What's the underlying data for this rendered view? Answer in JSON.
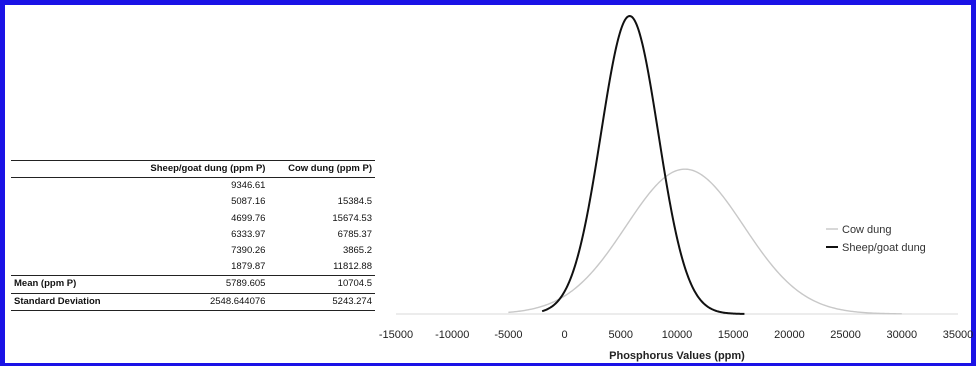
{
  "table": {
    "col_headers": [
      "",
      "Sheep/goat dung (ppm P)",
      "Cow dung (ppm P)"
    ],
    "rows": [
      [
        "",
        "9346.61",
        ""
      ],
      [
        "",
        "5087.16",
        "15384.5"
      ],
      [
        "",
        "4699.76",
        "15674.53"
      ],
      [
        "",
        "6333.97",
        "6785.37"
      ],
      [
        "",
        "7390.26",
        "3865.2"
      ],
      [
        "",
        "1879.87",
        "11812.88"
      ]
    ],
    "mean": [
      "Mean (ppm P)",
      "5789.605",
      "10704.5"
    ],
    "sd": [
      "Standard Deviation",
      "2548.644076",
      "5243.274"
    ]
  },
  "colors": {
    "frame": "#1a12e6",
    "cow": "#c8c8c8",
    "sheep": "#111111"
  },
  "chart_data": {
    "type": "line",
    "xlabel": "Phosphorus Values (ppm)",
    "ylabel": "",
    "xlim": [
      -15000,
      35000
    ],
    "x_ticks": [
      "-15000",
      "-10000",
      "-5000",
      "0",
      "5000",
      "10000",
      "15000",
      "20000",
      "25000",
      "30000",
      "35000"
    ],
    "legend_position": "right",
    "series": [
      {
        "name": "Cow dung",
        "mean": 10704.5,
        "sd": 5243.274,
        "x_range": [
          -5000,
          30000
        ],
        "color": "#c8c8c8"
      },
      {
        "name": "Sheep/goat dung",
        "mean": 5789.605,
        "sd": 2548.644076,
        "x_range": [
          -2000,
          16000
        ],
        "color": "#111111"
      }
    ]
  }
}
